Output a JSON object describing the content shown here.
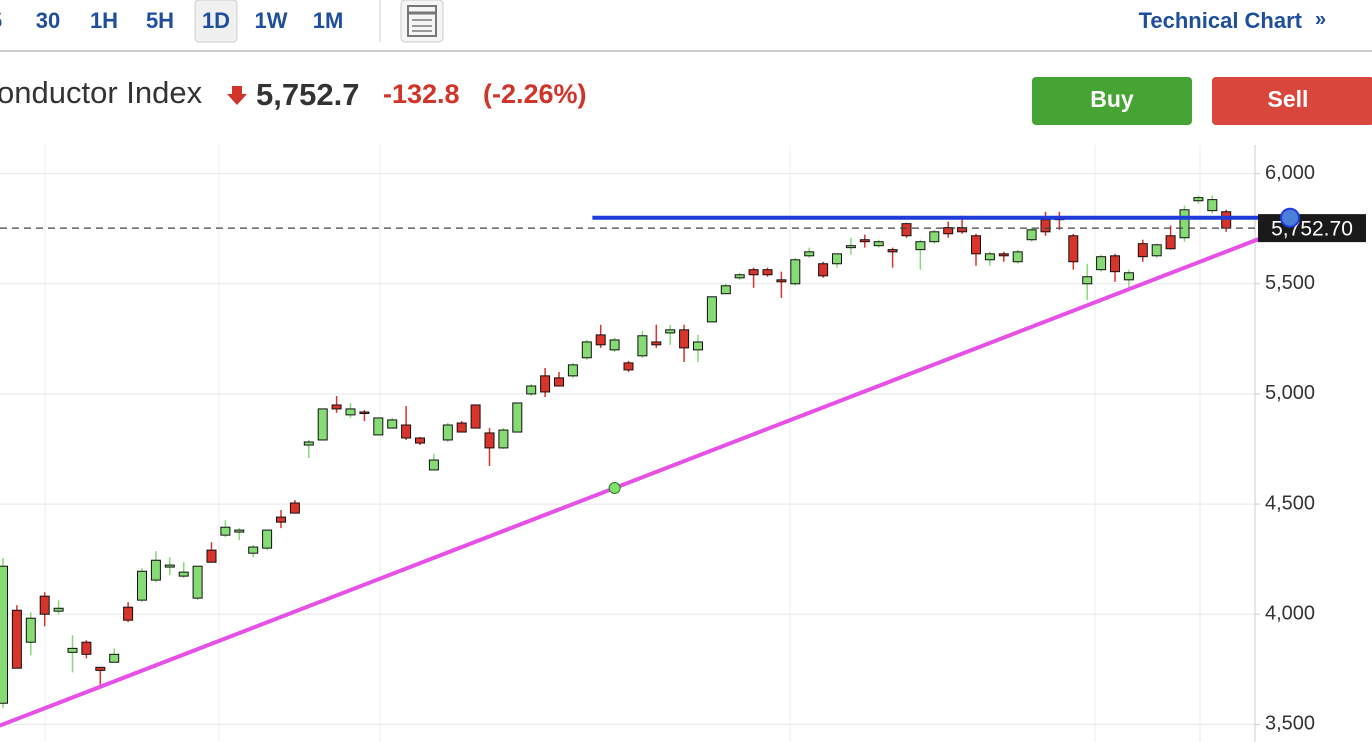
{
  "toolbar": {
    "intervals": [
      "5",
      "30",
      "1H",
      "5H",
      "1D",
      "1W",
      "1M"
    ],
    "selected": 4,
    "technical_chart": "Technical Chart",
    "chevron": "»"
  },
  "quote": {
    "name": "onductor Index",
    "price": "5,752.7",
    "change": "-132.8",
    "change_pct": "(-2.26%)"
  },
  "buttons": [
    "Buy",
    "Sell"
  ],
  "chart_data": {
    "type": "candlestick",
    "candles": {
      "open": [
        3596,
        4018,
        3873,
        4082,
        4014,
        3827,
        3873,
        3759,
        3782,
        4032,
        4064,
        4155,
        4214,
        4173,
        4073,
        4291,
        4359,
        4373,
        4277,
        4300,
        4441,
        4505,
        4768,
        4791,
        4950,
        4905,
        4918,
        4814,
        4845,
        4859,
        4800,
        4655,
        4791,
        4868,
        4950,
        4823,
        4755,
        4827,
        5000,
        5082,
        5073,
        5082,
        5164,
        5268,
        5200,
        5141,
        5173,
        5236,
        5277,
        5291,
        5200,
        5327,
        5455,
        5527,
        5564,
        5564,
        5518,
        5500,
        5627,
        5591,
        5591,
        5664,
        5700,
        5673,
        5655,
        5773,
        5655,
        5691,
        5755,
        5755,
        5718,
        5609,
        5636,
        5600,
        5700,
        5791,
        5800,
        5718,
        5500,
        5564,
        5627,
        5518,
        5682,
        5627,
        5718,
        5709,
        5877,
        5832,
        5827
      ],
      "high": [
        4255,
        4041,
        4009,
        4100,
        4064,
        3905,
        3882,
        3759,
        3845,
        4055,
        4209,
        4286,
        4259,
        4236,
        4218,
        4327,
        4427,
        4391,
        4314,
        4382,
        4473,
        4518,
        4791,
        4932,
        4991,
        4959,
        4927,
        4891,
        4891,
        4945,
        4805,
        4727,
        4868,
        4877,
        4950,
        4845,
        4845,
        4959,
        5045,
        5118,
        5100,
        5141,
        5245,
        5314,
        5255,
        5150,
        5286,
        5314,
        5314,
        5314,
        5268,
        5441,
        5500,
        5550,
        5573,
        5573,
        5555,
        5618,
        5664,
        5600,
        5636,
        5709,
        5723,
        5700,
        5664,
        5777,
        5700,
        5745,
        5782,
        5809,
        5727,
        5645,
        5645,
        5655,
        5755,
        5827,
        5827,
        5727,
        5591,
        5632,
        5636,
        5564,
        5700,
        5682,
        5764,
        5855,
        5900,
        5900,
        5836
      ],
      "low": [
        3573,
        3755,
        3814,
        3945,
        4000,
        3736,
        3800,
        3673,
        3782,
        3964,
        4055,
        4145,
        4177,
        4164,
        4064,
        4236,
        4350,
        4336,
        4259,
        4291,
        4391,
        4459,
        4709,
        4791,
        4914,
        4891,
        4877,
        4814,
        4845,
        4791,
        4768,
        4655,
        4782,
        4827,
        4845,
        4673,
        4750,
        4827,
        4991,
        4986,
        5036,
        5073,
        5155,
        5209,
        5191,
        5100,
        5164,
        5209,
        5223,
        5145,
        5145,
        5327,
        5455,
        5518,
        5482,
        5532,
        5436,
        5491,
        5618,
        5527,
        5573,
        5632,
        5664,
        5664,
        5573,
        5709,
        5564,
        5682,
        5709,
        5727,
        5582,
        5582,
        5600,
        5591,
        5691,
        5718,
        5745,
        5564,
        5427,
        5555,
        5509,
        5473,
        5600,
        5618,
        5655,
        5691,
        5864,
        5818,
        5736
      ],
      "close": [
        4218,
        3755,
        3982,
        4000,
        4027,
        3845,
        3818,
        3745,
        3818,
        3973,
        4195,
        4245,
        4223,
        4191,
        4218,
        4236,
        4395,
        4382,
        4305,
        4382,
        4418,
        4459,
        4782,
        4932,
        4932,
        4932,
        4914,
        4891,
        4882,
        4800,
        4777,
        4700,
        4859,
        4827,
        4845,
        4755,
        4836,
        4959,
        5036,
        5009,
        5036,
        5132,
        5236,
        5223,
        5245,
        5109,
        5264,
        5223,
        5291,
        5209,
        5236,
        5441,
        5491,
        5541,
        5541,
        5541,
        5509,
        5609,
        5645,
        5536,
        5636,
        5673,
        5691,
        5691,
        5645,
        5718,
        5691,
        5736,
        5727,
        5736,
        5636,
        5636,
        5627,
        5645,
        5745,
        5736,
        5791,
        5600,
        5532,
        5623,
        5555,
        5550,
        5623,
        5677,
        5659,
        5836,
        5891,
        5882,
        5752.7
      ]
    },
    "up_color": "#86db74",
    "down_color": "#d9342b",
    "ylim": [
      3420,
      6130
    ],
    "yticks": [
      {
        "value": 3500,
        "label": "3,500"
      },
      {
        "value": 4000,
        "label": "4,000"
      },
      {
        "value": 4500,
        "label": "4,500"
      },
      {
        "value": 5000,
        "label": "5,000"
      },
      {
        "value": 5500,
        "label": "5,500"
      },
      {
        "value": 6000,
        "label": "6,000"
      }
    ],
    "grid": true,
    "last_price": {
      "value": 5752.7,
      "label": "5,752.70"
    },
    "horizontal_line": {
      "value": 5800,
      "start_index": 42.4,
      "color": "#1f3bdb"
    },
    "trendline": {
      "points": [
        [
          0,
          3500
        ],
        [
          44,
          4573
        ]
      ],
      "color": "#e650e6"
    }
  }
}
